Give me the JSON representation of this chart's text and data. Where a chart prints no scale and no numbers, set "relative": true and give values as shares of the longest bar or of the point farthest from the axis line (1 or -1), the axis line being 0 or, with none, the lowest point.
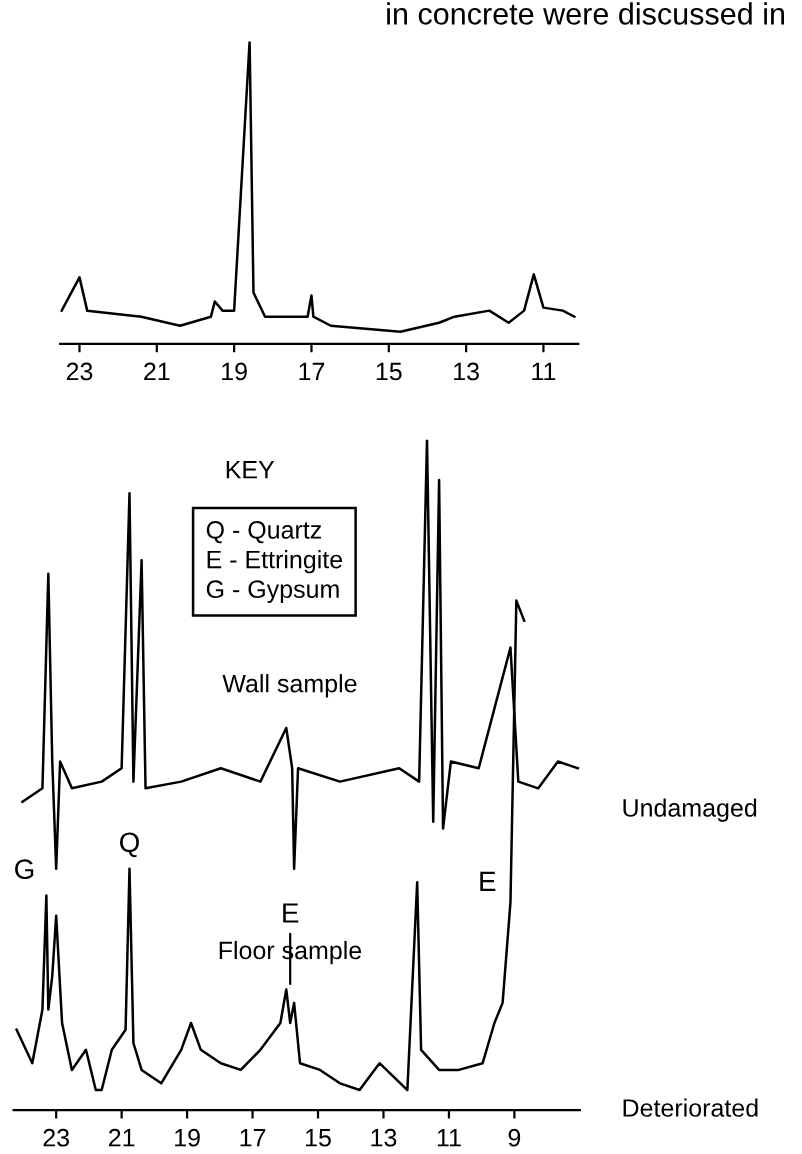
{
  "chart_data": [
    {
      "type": "line",
      "title": "in concrete were discussed in",
      "relative": true,
      "xlim": [
        23.5,
        10.1
      ],
      "xticks": [
        23,
        21,
        19,
        17,
        15,
        13,
        11
      ],
      "grid": false,
      "legend": false,
      "marker": "none",
      "line_style": "solid",
      "series": [
        {
          "name": "Undamaged",
          "color": "#000000",
          "x": [
            23.46,
            23.0,
            22.8,
            21.4,
            20.4,
            19.6,
            19.5,
            19.3,
            19.0,
            18.6,
            18.5,
            18.2,
            17.1,
            17.0,
            16.95,
            16.5,
            14.7,
            13.7,
            13.3,
            12.4,
            11.9,
            11.5,
            11.25,
            11.0,
            10.5,
            10.2
          ],
          "values": [
            0.11,
            0.22,
            0.11,
            0.09,
            0.06,
            0.09,
            0.14,
            0.11,
            0.11,
            1.0,
            0.17,
            0.09,
            0.09,
            0.16,
            0.09,
            0.06,
            0.04,
            0.07,
            0.09,
            0.11,
            0.07,
            0.11,
            0.23,
            0.12,
            0.11,
            0.09
          ]
        }
      ]
    },
    {
      "type": "line",
      "relative": true,
      "xlim": [
        24.3,
        7.0
      ],
      "xticks": [
        23,
        21,
        19,
        17,
        15,
        13,
        11,
        9
      ],
      "grid": false,
      "legend": false,
      "marker": "none",
      "line_style": "solid",
      "series": [
        {
          "name": "Wall sample",
          "color": "#000000",
          "x": [
            24.03,
            23.42,
            23.24,
            23.12,
            23.0,
            22.88,
            22.52,
            21.61,
            21.0,
            20.76,
            20.64,
            20.39,
            20.27,
            19.18,
            17.97,
            16.76,
            15.97,
            15.79,
            15.73,
            15.61,
            14.33,
            12.52,
            11.91,
            11.67,
            11.48,
            11.3,
            11.18,
            10.94,
            10.09,
            9.12,
            8.88,
            8.27,
            7.67,
            7.06
          ],
          "values": [
            0.46,
            0.48,
            0.8,
            0.52,
            0.36,
            0.52,
            0.48,
            0.49,
            0.51,
            0.92,
            0.49,
            0.82,
            0.48,
            0.49,
            0.51,
            0.49,
            0.57,
            0.51,
            0.36,
            0.51,
            0.49,
            0.51,
            0.49,
            1.0,
            0.43,
            0.94,
            0.42,
            0.52,
            0.51,
            0.69,
            0.49,
            0.48,
            0.52,
            0.51
          ]
        },
        {
          "name": "Floor sample",
          "color": "#000000",
          "x": [
            24.21,
            23.73,
            23.42,
            23.3,
            23.24,
            23.12,
            23.0,
            22.82,
            22.52,
            22.09,
            21.79,
            21.61,
            21.3,
            20.88,
            20.76,
            20.64,
            20.39,
            19.79,
            19.18,
            18.88,
            18.58,
            17.97,
            17.36,
            16.76,
            16.15,
            15.97,
            15.85,
            15.73,
            15.55,
            14.94,
            14.33,
            13.73,
            13.12,
            12.27,
            11.97,
            11.85,
            11.3,
            10.7,
            9.97,
            9.61,
            9.36,
            9.12,
            8.94,
            8.7
          ],
          "values": [
            0.12,
            0.07,
            0.15,
            0.32,
            0.15,
            0.2,
            0.29,
            0.13,
            0.06,
            0.09,
            0.03,
            0.03,
            0.09,
            0.12,
            0.36,
            0.1,
            0.06,
            0.04,
            0.09,
            0.13,
            0.09,
            0.07,
            0.06,
            0.09,
            0.13,
            0.18,
            0.13,
            0.16,
            0.07,
            0.06,
            0.04,
            0.03,
            0.07,
            0.03,
            0.34,
            0.09,
            0.06,
            0.06,
            0.07,
            0.13,
            0.16,
            0.31,
            0.76,
            0.73
          ]
        }
      ],
      "annotations": [
        "KEY",
        "Q - Quartz\nE - Ettringite\nG - Gypsum",
        "Deteriorated",
        {
          "text": "G",
          "x": 23.3,
          "y": 0.32
        },
        {
          "text": "Q",
          "x": 20.76,
          "y": 0.36
        },
        {
          "text": "E",
          "x": 15.85,
          "y": 0.18
        },
        {
          "text": "E",
          "x": 9.12,
          "y": 0.31
        }
      ]
    }
  ]
}
